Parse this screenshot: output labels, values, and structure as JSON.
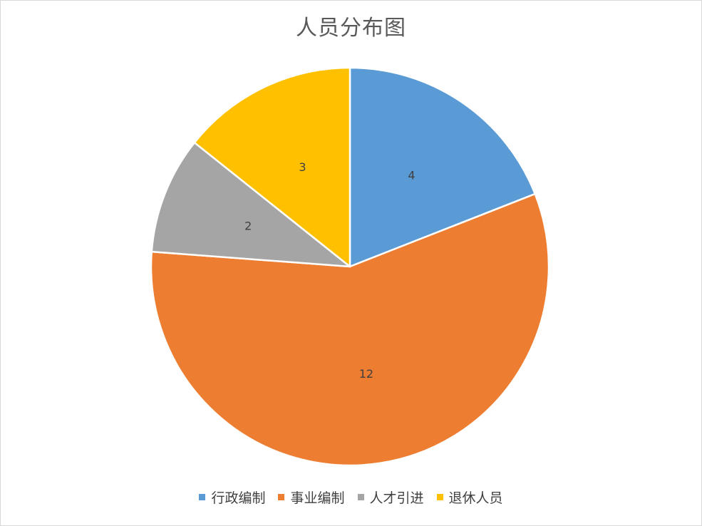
{
  "chart_data": {
    "type": "pie",
    "title": "人员分布图",
    "categories": [
      "行政编制",
      "事业编制",
      "人才引进",
      "退休人员"
    ],
    "values": [
      4,
      12,
      2,
      3
    ],
    "colors": [
      "#5b9bd5",
      "#ed7d31",
      "#a5a5a5",
      "#ffc000"
    ],
    "data_labels": [
      "4",
      "12",
      "2",
      "3"
    ],
    "legend_position": "bottom",
    "start_angle": "12 o'clock",
    "direction": "clockwise"
  }
}
